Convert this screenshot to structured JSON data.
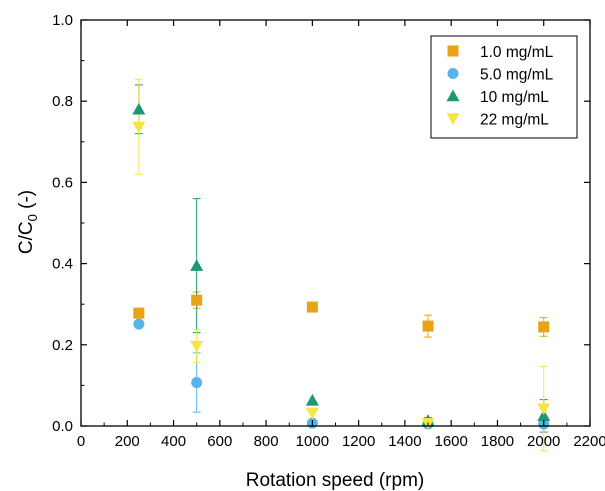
{
  "chart_data": {
    "type": "scatter",
    "xlabel": "Rotation speed (rpm)",
    "ylabel_main": "C/C",
    "ylabel_sub": "0",
    "ylabel_tail": " (-)",
    "xlim": [
      0,
      2200
    ],
    "ylim": [
      0.0,
      1.0
    ],
    "xticks": [
      0,
      200,
      400,
      600,
      800,
      1000,
      1200,
      1400,
      1600,
      1800,
      2000,
      2200
    ],
    "yticks": [
      0.0,
      0.2,
      0.4,
      0.6,
      0.8,
      1.0
    ],
    "grid": false,
    "legend_position": "top-right",
    "series": [
      {
        "name": "1.0 mg/mL",
        "marker": "square",
        "color": "#E8A317",
        "points": [
          {
            "x": 250,
            "y": 0.278,
            "err": 0.0
          },
          {
            "x": 500,
            "y": 0.31,
            "err": 0.02
          },
          {
            "x": 1000,
            "y": 0.293,
            "err": 0.0
          },
          {
            "x": 1500,
            "y": 0.246,
            "err": 0.027
          },
          {
            "x": 2000,
            "y": 0.244,
            "err": 0.023
          }
        ]
      },
      {
        "name": "5.0 mg/mL",
        "marker": "circle",
        "color": "#56B4E9",
        "points": [
          {
            "x": 250,
            "y": 0.251,
            "err": 0.0
          },
          {
            "x": 500,
            "y": 0.107,
            "err": 0.073
          },
          {
            "x": 1000,
            "y": 0.007,
            "err": 0.0
          },
          {
            "x": 1500,
            "y": 0.005,
            "err": 0.0
          },
          {
            "x": 2000,
            "y": 0.005,
            "err": 0.0
          }
        ]
      },
      {
        "name": "10 mg/mL",
        "marker": "triangle-up",
        "color": "#1A9972",
        "points": [
          {
            "x": 250,
            "y": 0.78,
            "err": 0.06
          },
          {
            "x": 500,
            "y": 0.395,
            "err": 0.165
          },
          {
            "x": 1000,
            "y": 0.063,
            "err": 0.0
          },
          {
            "x": 1500,
            "y": 0.013,
            "err": 0.008
          },
          {
            "x": 2000,
            "y": 0.025,
            "err": 0.04
          }
        ]
      },
      {
        "name": "22 mg/mL",
        "marker": "triangle-down",
        "color": "#F5E642",
        "points": [
          {
            "x": 250,
            "y": 0.737,
            "err": 0.117
          },
          {
            "x": 500,
            "y": 0.197,
            "err": 0.04
          },
          {
            "x": 1000,
            "y": 0.032,
            "err": 0.0
          },
          {
            "x": 1500,
            "y": 0.007,
            "err": 0.012
          },
          {
            "x": 2000,
            "y": 0.043,
            "err": 0.104
          }
        ]
      }
    ]
  }
}
